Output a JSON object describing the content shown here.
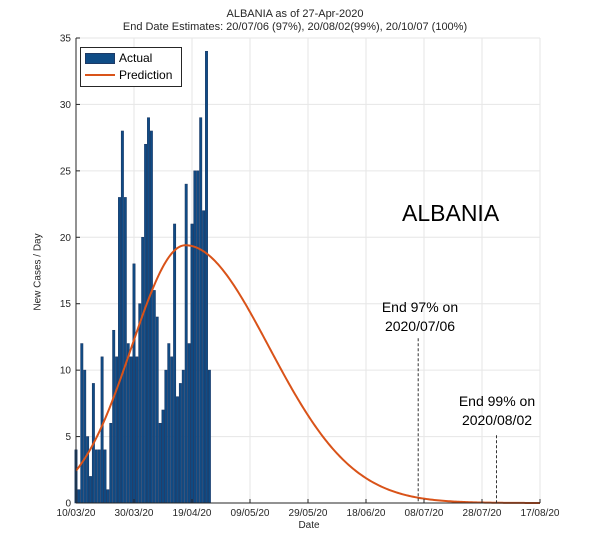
{
  "chart_data": {
    "type": "bar",
    "title": "ALBANIA as of 27-Apr-2020",
    "subtitle": "End Date Estimates: 20/07/06 (97%), 20/08/02(99%), 20/10/07 (100%)",
    "xlabel": "Date",
    "ylabel": "New Cases / Day",
    "ylim": [
      0,
      35
    ],
    "yticks": [
      0,
      5,
      10,
      15,
      20,
      25,
      30,
      35
    ],
    "xlim_day": [
      0,
      160
    ],
    "xticks": [
      {
        "day": 0,
        "label": "10/03/20"
      },
      {
        "day": 20,
        "label": "30/03/20"
      },
      {
        "day": 40,
        "label": "19/04/20"
      },
      {
        "day": 60,
        "label": "09/05/20"
      },
      {
        "day": 80,
        "label": "29/05/20"
      },
      {
        "day": 100,
        "label": "18/06/20"
      },
      {
        "day": 120,
        "label": "08/07/20"
      },
      {
        "day": 140,
        "label": "28/07/20"
      },
      {
        "day": 160,
        "label": "17/08/20"
      }
    ],
    "grid": true,
    "legend_position": "top-left",
    "series": [
      {
        "name": "Actual",
        "kind": "bar",
        "color": "#0f4c86",
        "start_day": 0,
        "values": [
          4,
          1,
          12,
          10,
          5,
          2,
          9,
          4,
          4,
          11,
          4,
          1,
          6,
          13,
          11,
          23,
          28,
          23,
          12,
          11,
          18,
          11,
          15,
          20,
          27,
          29,
          28,
          16,
          14,
          6,
          7,
          10,
          12,
          11,
          21,
          8,
          9,
          10,
          24,
          12,
          21,
          25,
          25,
          29,
          22,
          34,
          10
        ]
      },
      {
        "name": "Prediction",
        "kind": "line",
        "color": "#d95319",
        "peak_day": 37.7,
        "peak_value": 19.4,
        "sigma_left": 18.5,
        "sigma_right": 28.8
      }
    ],
    "annotations": [
      {
        "day": 118,
        "label_lines": [
          "End 97% on",
          "2020/07/06"
        ],
        "line_top_value": 12.4
      },
      {
        "day": 145,
        "label_lines": [
          "End 99% on",
          "2020/08/02"
        ],
        "line_top_value": 5.1
      }
    ],
    "country_label": "ALBANIA"
  }
}
